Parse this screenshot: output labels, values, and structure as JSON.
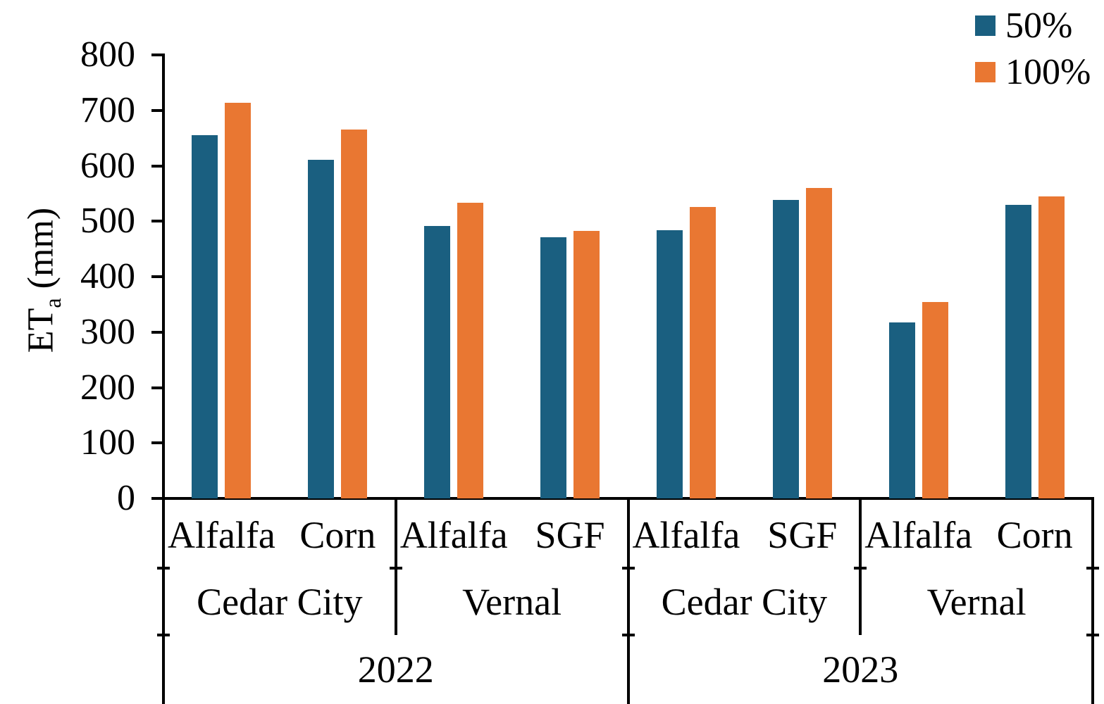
{
  "chart_data": {
    "type": "bar",
    "title": "",
    "ylabel_main": "ET",
    "ylabel_sub": "a",
    "ylabel_unit": " (mm)",
    "ylim": [
      0,
      800
    ],
    "yticks": [
      0,
      100,
      200,
      300,
      400,
      500,
      600,
      700,
      800
    ],
    "grid": false,
    "legend_position": "top-right",
    "axis_color": "#000000",
    "series": [
      {
        "name": "50%",
        "color": "#1A5F80"
      },
      {
        "name": "100%",
        "color": "#E97732"
      }
    ],
    "groups": [
      {
        "year": "2022",
        "location": "Cedar City",
        "crop": "Alfalfa",
        "values": [
          655,
          714
        ]
      },
      {
        "year": "2022",
        "location": "Cedar City",
        "crop": "Corn",
        "values": [
          611,
          665
        ]
      },
      {
        "year": "2022",
        "location": "Vernal",
        "crop": "Alfalfa",
        "values": [
          491,
          533
        ]
      },
      {
        "year": "2022",
        "location": "Vernal",
        "crop": "SGF",
        "values": [
          471,
          483
        ]
      },
      {
        "year": "2023",
        "location": "Cedar City",
        "crop": "Alfalfa",
        "values": [
          484,
          526
        ]
      },
      {
        "year": "2023",
        "location": "Cedar City",
        "crop": "SGF",
        "values": [
          538,
          560
        ]
      },
      {
        "year": "2023",
        "location": "Vernal",
        "crop": "Alfalfa",
        "values": [
          318,
          354
        ]
      },
      {
        "year": "2023",
        "location": "Vernal",
        "crop": "Corn",
        "values": [
          530,
          545
        ]
      }
    ],
    "axis_tiers": {
      "locations": [
        {
          "label": "Cedar City",
          "span": 2
        },
        {
          "label": "Vernal",
          "span": 2
        },
        {
          "label": "Cedar City",
          "span": 2
        },
        {
          "label": "Vernal",
          "span": 2
        }
      ],
      "years": [
        {
          "label": "2022",
          "span": 4
        },
        {
          "label": "2023",
          "span": 4
        }
      ]
    }
  }
}
